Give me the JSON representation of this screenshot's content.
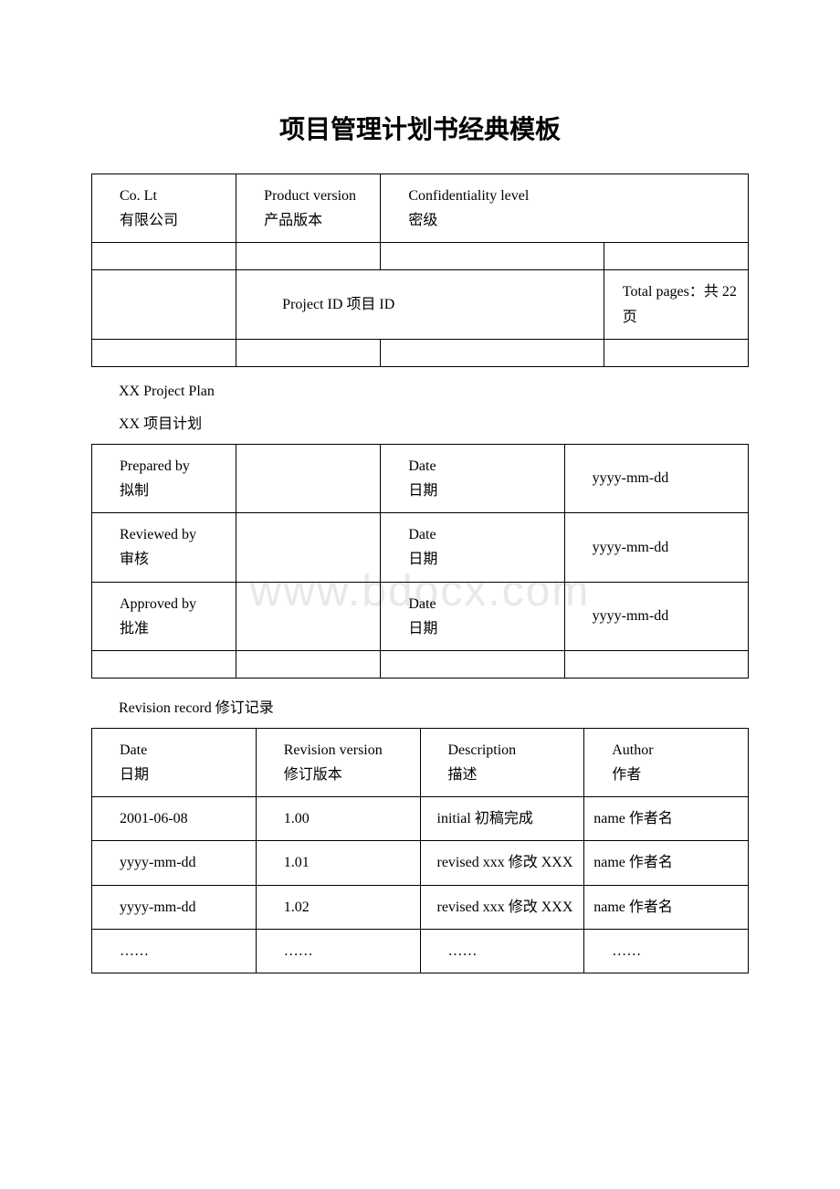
{
  "title": "项目管理计划书经典模板",
  "watermark": "www.bdocx.com",
  "header": {
    "company_en": "Co. Lt",
    "company_cn": "有限公司",
    "version_en": "Product version",
    "version_cn": "产品版本",
    "conf_en": "Confidentiality level",
    "conf_cn": "密级",
    "project_id": "Project ID 项目 ID",
    "pages": "Total pages：共 22 页"
  },
  "plan": {
    "en": "XX Project Plan",
    "cn": "XX 项目计划"
  },
  "approval": {
    "prepared_en": "Prepared by",
    "prepared_cn": "拟制",
    "reviewed_en": "Reviewed by",
    "reviewed_cn": "审核",
    "approved_en": "Approved by",
    "approved_cn": "批准",
    "date_en": "Date",
    "date_cn": "日期",
    "date_val": "yyyy-mm-dd"
  },
  "revision": {
    "title": "Revision record 修订记录",
    "headers": {
      "date_en": "Date",
      "date_cn": "日期",
      "version_en": "Revision version",
      "version_cn": "修订版本",
      "desc_en": "Description",
      "desc_cn": "描述",
      "author_en": "Author",
      "author_cn": "作者"
    },
    "rows": [
      {
        "date": "2001-06-08",
        "version": "1.00",
        "desc": "initial 初稿完成",
        "author": "name 作者名"
      },
      {
        "date": "yyyy-mm-dd",
        "version": "1.01",
        "desc": "revised xxx 修改 XXX",
        "author": "name 作者名"
      },
      {
        "date": "yyyy-mm-dd",
        "version": "1.02",
        "desc": "revised xxx 修改 XXX",
        "author": "name 作者名"
      },
      {
        "date": "……",
        "version": "……",
        "desc": "……",
        "author": "……"
      }
    ]
  }
}
